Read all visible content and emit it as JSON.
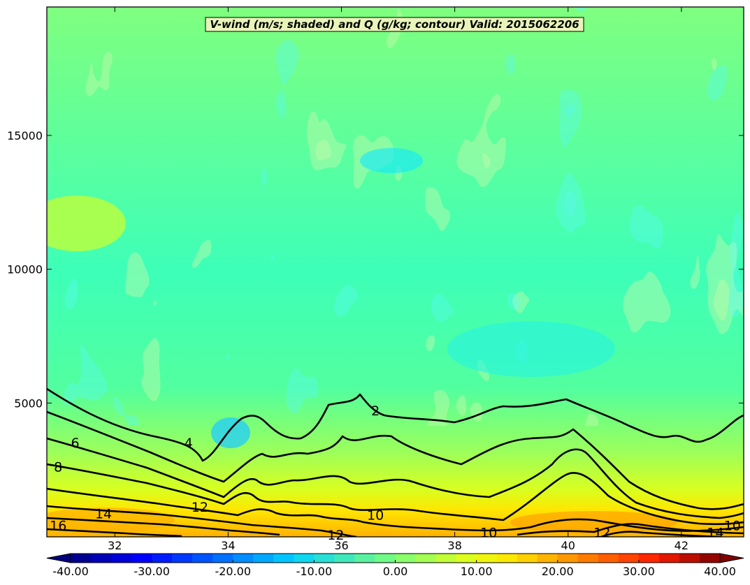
{
  "chart_data": {
    "type": "heatmap",
    "title": "V-wind (m/s; shaded) and Q (g/kg; contour) Valid: 2015062206",
    "xlim": [
      30.8,
      43.1
    ],
    "ylim": [
      0,
      19800
    ],
    "x_ticks": [
      32,
      34,
      36,
      38,
      40,
      42
    ],
    "y_ticks": [
      5000,
      10000,
      15000
    ],
    "shaded_field": {
      "name": "V-wind",
      "units": "m/s",
      "color_levels": [
        -40,
        -37.5,
        -35,
        -32.5,
        -30,
        -27.5,
        -25,
        -22.5,
        -20,
        -17.5,
        -15,
        -12.5,
        -10,
        -7.5,
        -5,
        -2.5,
        0,
        2.5,
        5,
        7.5,
        10,
        12.5,
        15,
        17.5,
        20,
        22.5,
        25,
        27.5,
        30,
        32.5,
        35,
        37.5,
        40
      ],
      "colorbar_ticks": [
        "-40.00",
        "-30.00",
        "-20.00",
        "-10.00",
        "0.00",
        "10.00",
        "20.00",
        "30.00",
        "40.00"
      ],
      "colorbar_range": [
        -40,
        40
      ],
      "approx_profile_by_height": [
        {
          "z": 0,
          "v": 18
        },
        {
          "z": 500,
          "v": 14
        },
        {
          "z": 1000,
          "v": 9
        },
        {
          "z": 2000,
          "v": 5
        },
        {
          "z": 3000,
          "v": 1
        },
        {
          "z": 5000,
          "v": -1
        },
        {
          "z": 8000,
          "v": -3
        },
        {
          "z": 12000,
          "v": 0
        },
        {
          "z": 16000,
          "v": 1
        },
        {
          "z": 19800,
          "v": 3
        }
      ]
    },
    "contour_field": {
      "name": "Q",
      "units": "g/kg",
      "levels": [
        2,
        4,
        6,
        8,
        10,
        12,
        14,
        16
      ],
      "labels": [
        {
          "text": "2",
          "x": 36.6,
          "y": 4700
        },
        {
          "text": "4",
          "x": 33.3,
          "y": 3500
        },
        {
          "text": "6",
          "x": 31.3,
          "y": 3500
        },
        {
          "text": "8",
          "x": 31.0,
          "y": 2600
        },
        {
          "text": "10",
          "x": 36.6,
          "y": 800
        },
        {
          "text": "10",
          "x": 38.6,
          "y": 150
        },
        {
          "text": "10",
          "x": 42.9,
          "y": 400
        },
        {
          "text": "12",
          "x": 33.5,
          "y": 1100
        },
        {
          "text": "12",
          "x": 35.9,
          "y": 50
        },
        {
          "text": "12",
          "x": 40.6,
          "y": 150
        },
        {
          "text": "14",
          "x": 31.8,
          "y": 850
        },
        {
          "text": "14",
          "x": 42.6,
          "y": 150
        },
        {
          "text": "16",
          "x": 31.0,
          "y": 400
        }
      ]
    }
  }
}
